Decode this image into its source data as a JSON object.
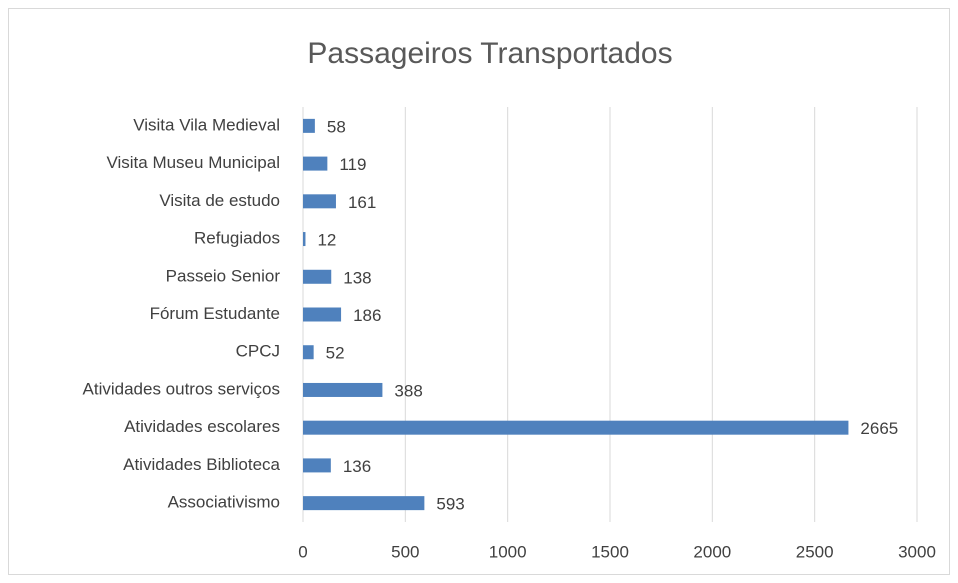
{
  "chart_data": {
    "type": "bar",
    "orientation": "horizontal",
    "title": "Passageiros Transportados",
    "categories": [
      "Visita Vila Medieval",
      "Visita Museu Municipal",
      "Visita de estudo",
      "Refugiados",
      "Passeio Senior",
      "Fórum Estudante",
      "CPCJ",
      "Atividades outros serviços",
      "Atividades escolares",
      "Atividades Biblioteca",
      "Associativismo"
    ],
    "values": [
      58,
      119,
      161,
      12,
      138,
      186,
      52,
      388,
      2665,
      136,
      593
    ],
    "color": "#4f81bd",
    "xlim": [
      0,
      3000
    ],
    "xticks": [
      0,
      500,
      1000,
      1500,
      2000,
      2500,
      3000
    ],
    "grid": true
  }
}
